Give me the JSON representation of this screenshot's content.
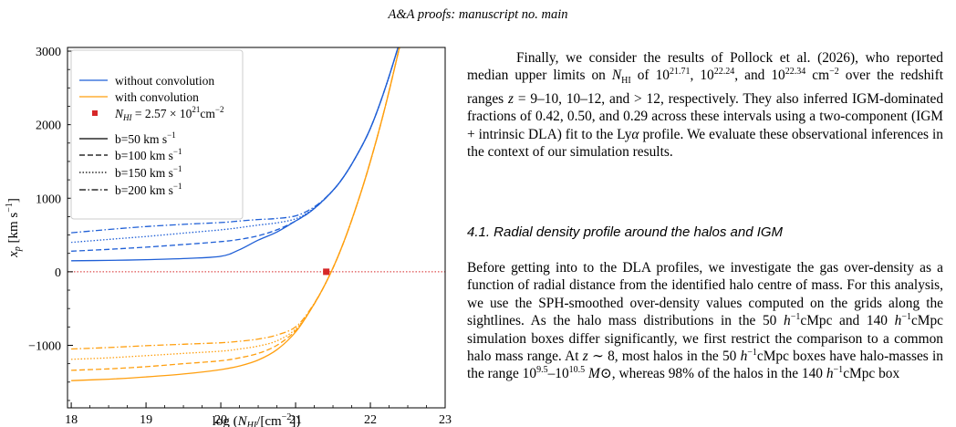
{
  "header": {
    "journal": "A&A proofs",
    "rest": ": manuscript no. main"
  },
  "chart_data": {
    "type": "line",
    "xlabel": "log (N_HI/[cm^-2])",
    "ylabel": "x_p [km s^-1]",
    "xlim": [
      17.95,
      23.0
    ],
    "ylim": [
      -1850,
      3050
    ],
    "xticks": [
      "18",
      "19",
      "20",
      "21",
      "22",
      "23"
    ],
    "yticks": [
      "−1000",
      "0",
      "1000",
      "2000",
      "3000"
    ],
    "grid": false,
    "legend_placement": "top-left",
    "legend": [
      {
        "label": "without convolution",
        "kind": "line",
        "color": "#1f5fd6"
      },
      {
        "label": "with convolution",
        "kind": "line",
        "color": "#ff9f0f"
      },
      {
        "label": "N_HI = 2.57 × 10^21 cm^-2",
        "kind": "marker",
        "color": "#d62728"
      },
      {
        "label": "b=50 km s^-1",
        "kind": "line",
        "dash": "solid"
      },
      {
        "label": "b=100 km s^-1",
        "kind": "line",
        "dash": "dashed"
      },
      {
        "label": "b=150 km s^-1",
        "kind": "line",
        "dash": "dotted"
      },
      {
        "label": "b=200 km s^-1",
        "kind": "line",
        "dash": "dashdot"
      }
    ],
    "x": [
      18.0,
      18.5,
      19.0,
      19.5,
      20.0,
      20.25,
      20.5,
      20.75,
      21.0,
      21.2,
      21.4,
      21.6,
      21.8,
      22.0,
      22.2,
      22.4
    ],
    "series": [
      {
        "name": "without convolution, b=50",
        "color": "#1f5fd6",
        "dash": "solid",
        "y": [
          150,
          155,
          165,
          180,
          210,
          300,
          430,
          540,
          690,
          820,
          1000,
          1230,
          1550,
          1950,
          2500,
          3150
        ]
      },
      {
        "name": "without convolution, b=100",
        "color": "#1f5fd6",
        "dash": "dashed",
        "y": [
          280,
          305,
          335,
          370,
          410,
          440,
          490,
          570,
          690,
          820,
          1000,
          1230,
          1550,
          1950,
          2500,
          3150
        ]
      },
      {
        "name": "without convolution, b=150",
        "color": "#1f5fd6",
        "dash": "dotted",
        "y": [
          400,
          440,
          480,
          525,
          570,
          600,
          635,
          665,
          720,
          830,
          1000,
          1230,
          1550,
          1950,
          2500,
          3150
        ]
      },
      {
        "name": "without convolution, b=200",
        "color": "#1f5fd6",
        "dash": "dashdot",
        "y": [
          530,
          575,
          615,
          645,
          670,
          690,
          710,
          725,
          760,
          850,
          1005,
          1230,
          1550,
          1950,
          2500,
          3150
        ]
      },
      {
        "name": "with convolution, b=50",
        "color": "#ff9f0f",
        "dash": "solid",
        "y": [
          -1480,
          -1460,
          -1430,
          -1390,
          -1330,
          -1280,
          -1200,
          -1060,
          -820,
          -520,
          -160,
          290,
          850,
          1500,
          2250,
          3100
        ]
      },
      {
        "name": "with convolution, b=100",
        "color": "#ff9f0f",
        "dash": "dashed",
        "y": [
          -1340,
          -1320,
          -1290,
          -1250,
          -1210,
          -1170,
          -1110,
          -1000,
          -800,
          -520,
          -160,
          290,
          850,
          1500,
          2250,
          3100
        ]
      },
      {
        "name": "with convolution, b=150",
        "color": "#ff9f0f",
        "dash": "dotted",
        "y": [
          -1190,
          -1170,
          -1140,
          -1110,
          -1080,
          -1050,
          -1010,
          -940,
          -780,
          -515,
          -160,
          290,
          850,
          1500,
          2250,
          3100
        ]
      },
      {
        "name": "with convolution, b=200",
        "color": "#ff9f0f",
        "dash": "dashdot",
        "y": [
          -1050,
          -1030,
          -1005,
          -985,
          -965,
          -945,
          -915,
          -860,
          -750,
          -505,
          -160,
          290,
          850,
          1500,
          2250,
          3100
        ]
      }
    ],
    "marker": {
      "x": 21.41,
      "y": 0,
      "color": "#d62728"
    },
    "hline": {
      "y": 0,
      "color": "#d62728",
      "style": "dotted"
    },
    "colors": {
      "blue": "#1f5fd6",
      "orange": "#ff9f0f",
      "red": "#d62728"
    }
  },
  "body": {
    "para1": {
      "s1": "Finally, we consider the results of Pollock et al. (2026), who reported median upper limits on ",
      "N": "N",
      "HI": "HI",
      "s2": " of 10",
      "e1": "21.71",
      "s3": ", 10",
      "e2": "22.24",
      "s4": ", and 10",
      "e3": "22.34",
      "s5": " cm",
      "e4": "−2",
      "s6": " over the redshift ranges ",
      "z1": "z",
      "s7": " = 9–10, 10–12, and > 12, respectively. They also inferred IGM-dominated fractions of 0.42, 0.50, and 0.29 across these intervals using a two-component (IGM + intrinsic DLA) fit to the Ly",
      "alpha": "α",
      "s8": " profile. We evaluate these observational inferences in the context of our simulation results."
    },
    "heading": "4.1. Radial density profile around the halos and IGM",
    "para2": {
      "s1": "Before getting into to the DLA profiles, we investigate the gas over-density as a function of radial distance from the identified halo centre of mass. For this analysis, we use the SPH-smoothed over-density values computed on the grids along the sightlines. As the halo mass distributions in the 50 ",
      "h1": "h",
      "e1": "−1",
      "s2": "cMpc and 140 ",
      "h2": "h",
      "e2": "−1",
      "s3": "cMpc simulation boxes differ significantly, we first restrict the comparison to a common halo mass range. At ",
      "z": "z",
      "s4": " ∼ 8, most halos in the 50 ",
      "h3": "h",
      "e3": "−1",
      "s5": "cMpc boxes have halo-masses in the range 10",
      "e4": "9.5",
      "s6": "–10",
      "e5": "10.5",
      "s7": " ",
      "M": "M",
      "s8": "⊙, whereas 98% of the halos in the 140 ",
      "h4": "h",
      "e6": "−1",
      "s9": "cMpc box"
    }
  }
}
